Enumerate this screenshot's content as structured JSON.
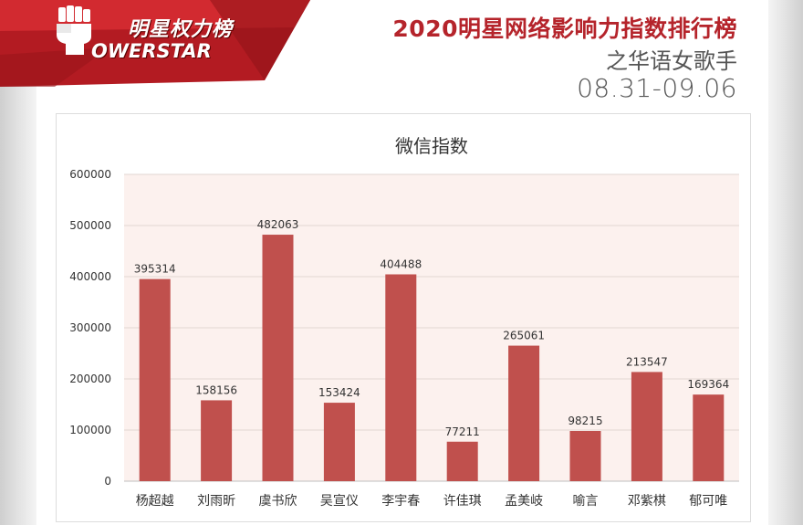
{
  "logo": {
    "cn_text": "明星权力榜",
    "en_text": "OWERSTAR"
  },
  "header": {
    "title": "2020明星网络影响力指数排行榜",
    "subtitle": "之华语女歌手",
    "date_range": "08.31-09.06"
  },
  "colors": {
    "accent": "#b5242b",
    "bar": "#c0504d",
    "plot_background": "#fcf1ee"
  },
  "chart_data": {
    "type": "bar",
    "title": "微信指数",
    "categories": [
      "杨超越",
      "刘雨昕",
      "虞书欣",
      "吴宣仪",
      "李宇春",
      "许佳琪",
      "孟美岐",
      "喻言",
      "邓紫棋",
      "郁可唯"
    ],
    "values": [
      395314,
      158156,
      482063,
      153424,
      404488,
      77211,
      265061,
      98215,
      213547,
      169364
    ],
    "data_labels": [
      "395314",
      "158156",
      "482063",
      "153424",
      "404488",
      "77211",
      "265061",
      "98215",
      "213547",
      "169364"
    ],
    "yticks": [
      0,
      100000,
      200000,
      300000,
      400000,
      500000,
      600000
    ],
    "ylim": [
      0,
      600000
    ],
    "grid": true,
    "xlabel": "",
    "ylabel": ""
  }
}
